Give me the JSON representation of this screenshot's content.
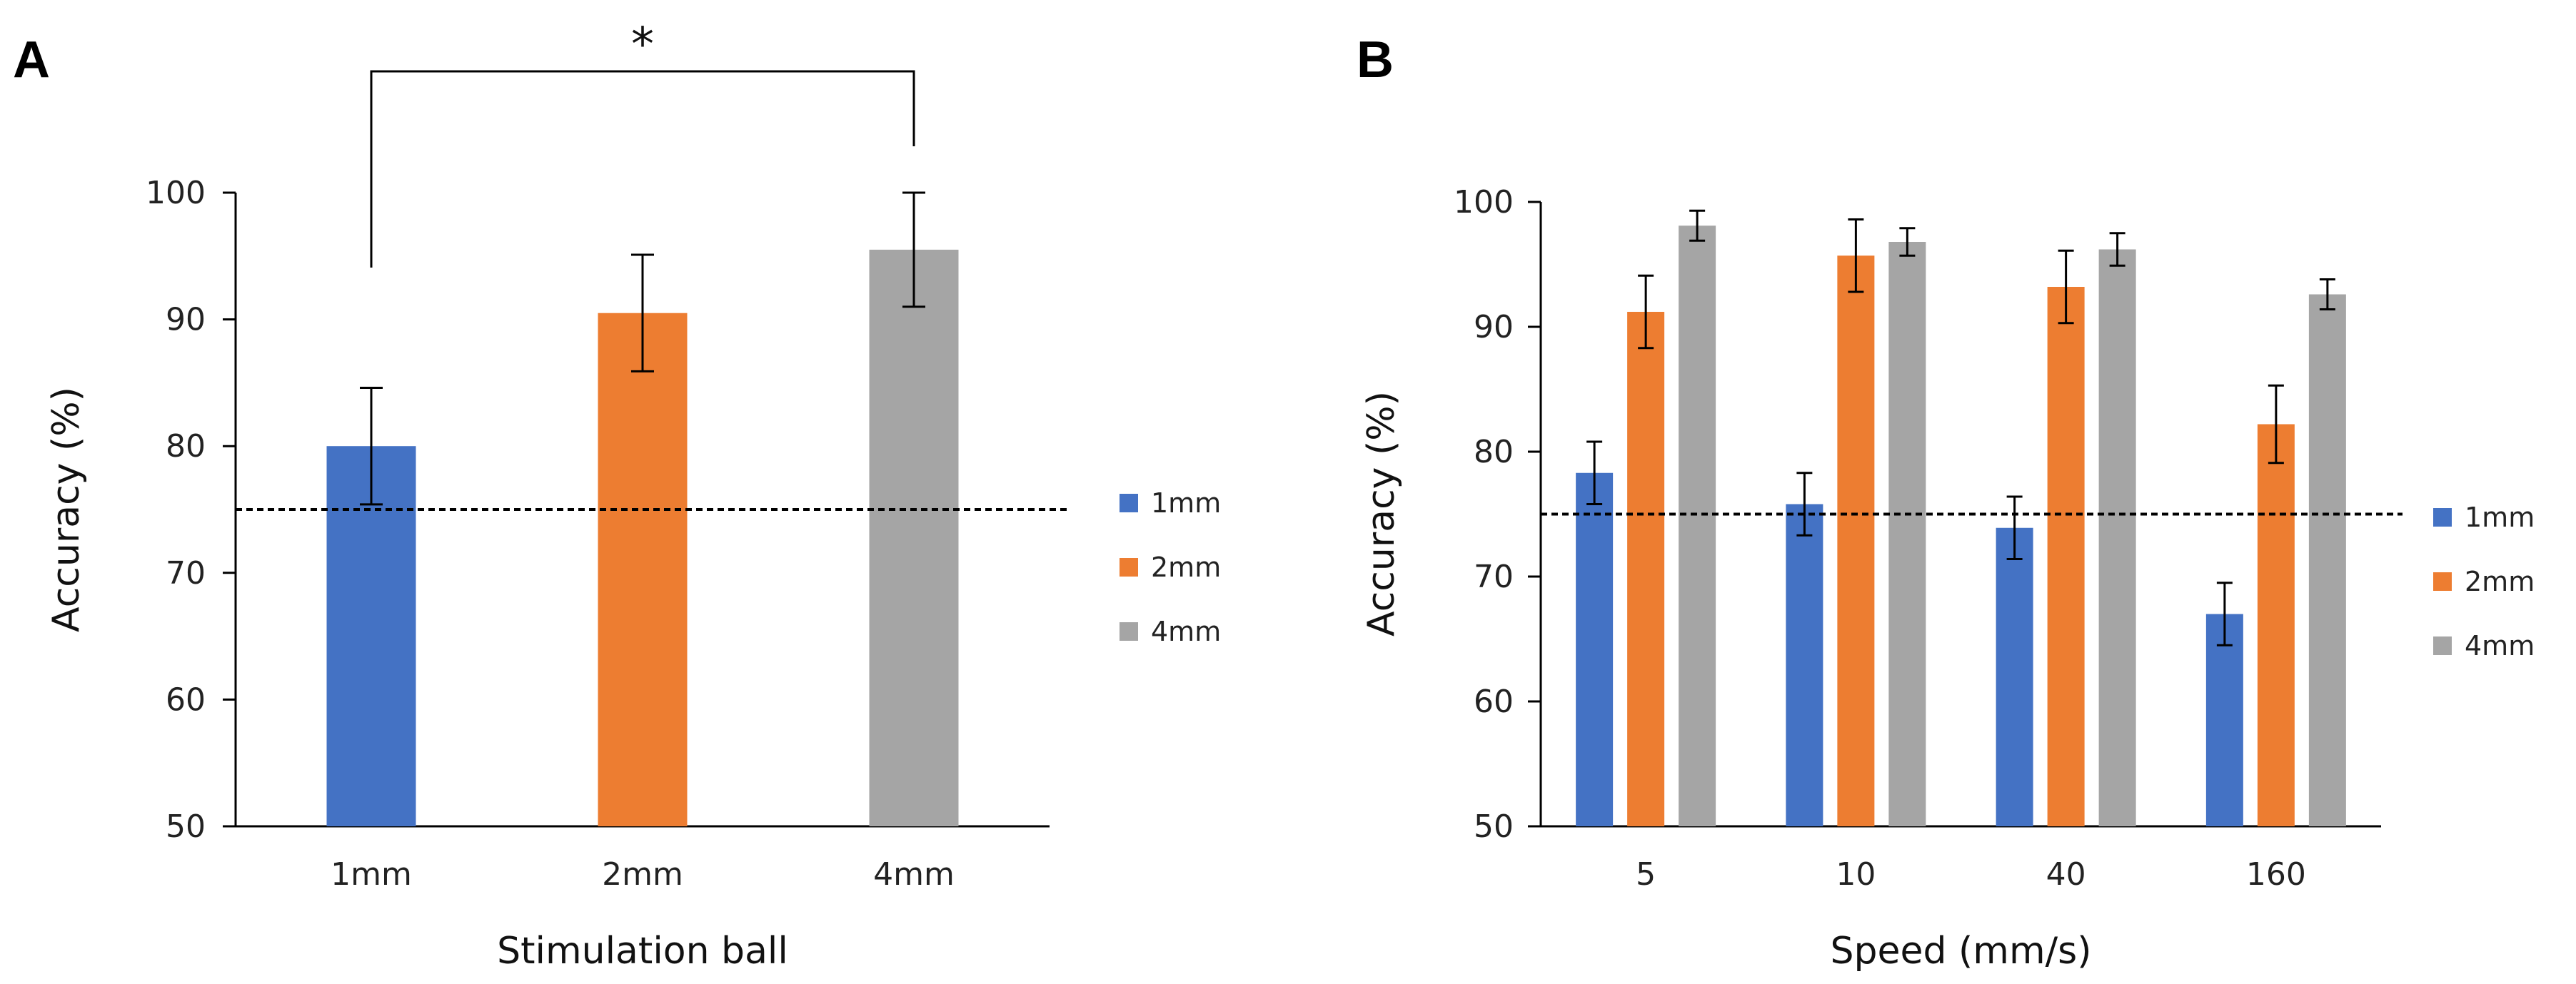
{
  "colors": {
    "1mm": "#4472C4",
    "2mm": "#ED7D31",
    "4mm": "#A5A5A5",
    "axis": "#000000",
    "reference_line": "#000000"
  },
  "chart_data": [
    {
      "panel": "A",
      "type": "bar",
      "categories": [
        "1mm",
        "2mm",
        "4mm"
      ],
      "series": [
        {
          "name": "Accuracy",
          "values": [
            80.0,
            90.5,
            95.5
          ],
          "errors": [
            4.6,
            4.6,
            4.5
          ],
          "colors": [
            "1mm",
            "2mm",
            "4mm"
          ]
        }
      ],
      "title": "",
      "xlabel": "Stimulation ball",
      "ylabel": "Accuracy (%)",
      "ylim": [
        50,
        100
      ],
      "yticks": [
        50,
        60,
        70,
        80,
        90,
        100
      ],
      "reference_line": 75,
      "legend": {
        "placement": "right",
        "entries": [
          {
            "label": "1mm",
            "color_key": "1mm"
          },
          {
            "label": "2mm",
            "color_key": "2mm"
          },
          {
            "label": "4mm",
            "color_key": "4mm"
          }
        ]
      },
      "significance": {
        "from": "1mm",
        "to": "4mm",
        "label": "*"
      }
    },
    {
      "panel": "B",
      "type": "bar",
      "categories": [
        "5",
        "10",
        "40",
        "160"
      ],
      "series": [
        {
          "name": "1mm",
          "color_key": "1mm",
          "values": [
            78.3,
            75.8,
            73.9,
            67.0
          ],
          "errors": [
            2.5,
            2.5,
            2.5,
            2.5
          ]
        },
        {
          "name": "2mm",
          "color_key": "2mm",
          "values": [
            91.2,
            95.7,
            93.2,
            82.2
          ],
          "errors": [
            2.9,
            2.9,
            2.9,
            3.1
          ]
        },
        {
          "name": "4mm",
          "color_key": "4mm",
          "values": [
            98.1,
            96.8,
            96.2,
            92.6
          ],
          "errors": [
            1.2,
            1.1,
            1.3,
            1.2
          ]
        }
      ],
      "title": "",
      "xlabel": "Speed (mm/s)",
      "ylabel": "Accuracy (%)",
      "ylim": [
        50,
        100
      ],
      "yticks": [
        50,
        60,
        70,
        80,
        90,
        100
      ],
      "reference_line": 75,
      "legend": {
        "placement": "right",
        "entries": [
          {
            "label": "1mm",
            "color_key": "1mm"
          },
          {
            "label": "2mm",
            "color_key": "2mm"
          },
          {
            "label": "4mm",
            "color_key": "4mm"
          }
        ]
      }
    }
  ]
}
